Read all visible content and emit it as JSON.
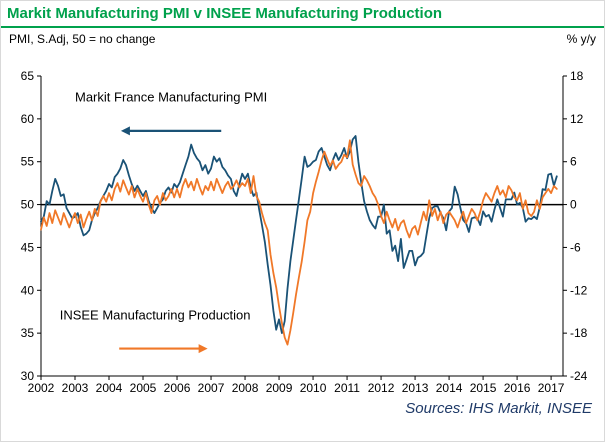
{
  "title": "Markit Manufacturing PMI v INSEE Manufacturing Production",
  "subtitle_left": "PMI, S.Adj, 50 = no change",
  "subtitle_right": "% y/y",
  "source": "Sources: IHS Markit, INSEE",
  "colors": {
    "title_green": "#00A14C",
    "pmi_blue": "#1A5276",
    "insee_orange": "#F07828",
    "source_navy": "#1F3A68",
    "annotation_text": "#1a1a1a",
    "axis_black": "#000000"
  },
  "chart_data": {
    "type": "line",
    "x_ticks": [
      2002,
      2003,
      2004,
      2005,
      2006,
      2007,
      2008,
      2009,
      2010,
      2011,
      2012,
      2013,
      2014,
      2015,
      2016,
      2017
    ],
    "x_domain": [
      2002,
      2017.35
    ],
    "left_axis": {
      "ticks": [
        65,
        60,
        55,
        50,
        45,
        40,
        35,
        30
      ],
      "min": 30,
      "max": 65
    },
    "right_axis": {
      "ticks": [
        18,
        12,
        6,
        0,
        -6,
        -12,
        -18,
        -24
      ],
      "min": -24,
      "max": 18
    },
    "baseline_left": 50,
    "series": [
      {
        "name": "Markit France Manufacturing PMI",
        "axis": "left",
        "color": "#1A5276",
        "start_year": 2002,
        "values": [
          48.0,
          48.6,
          50.4,
          50.0,
          51.6,
          53.0,
          52.2,
          51.0,
          51.2,
          49.6,
          49.0,
          48.4,
          48.6,
          49.0,
          47.4,
          46.4,
          46.6,
          47.0,
          48.2,
          49.0,
          49.6,
          50.4,
          51.0,
          51.6,
          52.4,
          52.0,
          53.2,
          53.6,
          54.2,
          55.2,
          54.6,
          53.4,
          52.4,
          51.6,
          52.2,
          51.6,
          51.0,
          51.6,
          50.4,
          49.6,
          49.0,
          49.6,
          50.2,
          50.6,
          51.6,
          52.0,
          51.4,
          52.4,
          52.0,
          52.6,
          53.6,
          54.6,
          55.6,
          57.0,
          56.0,
          55.4,
          55.0,
          54.0,
          54.6,
          53.6,
          54.2,
          55.6,
          55.0,
          55.4,
          54.4,
          54.0,
          53.4,
          53.0,
          51.6,
          51.0,
          52.4,
          53.6,
          53.0,
          53.6,
          52.0,
          51.0,
          51.4,
          49.4,
          47.6,
          45.6,
          43.0,
          40.6,
          37.6,
          35.4,
          36.6,
          35.0,
          36.4,
          40.2,
          43.4,
          45.8,
          48.2,
          50.6,
          53.0,
          55.6,
          54.4,
          54.6,
          55.0,
          55.2,
          56.2,
          56.6,
          55.6,
          54.6,
          54.0,
          55.2,
          56.0,
          55.2,
          55.8,
          56.6,
          55.4,
          56.2,
          57.6,
          58.0,
          55.0,
          52.6,
          50.4,
          49.2,
          48.2,
          47.6,
          47.2,
          48.6,
          48.6,
          50.0,
          46.6,
          47.0,
          44.6,
          45.2,
          43.4,
          46.0,
          42.6,
          43.6,
          44.6,
          44.6,
          42.9,
          43.8,
          44.0,
          44.4,
          46.4,
          48.4,
          49.6,
          49.8,
          49.8,
          49.0,
          48.4,
          47.0,
          49.2,
          49.6,
          52.1,
          51.2,
          49.6,
          48.2,
          47.8,
          46.8,
          48.4,
          48.5,
          48.4,
          47.6,
          49.2,
          48.6,
          48.8,
          48.0,
          49.4,
          50.6,
          49.6,
          48.6,
          50.6,
          50.6,
          50.6,
          51.4,
          50.0,
          50.2,
          49.6,
          48.0,
          48.4,
          48.3,
          48.6,
          48.3,
          49.7,
          51.8,
          51.7,
          53.5,
          53.6,
          52.2,
          53.3
        ]
      },
      {
        "name": "INSEE Manufacturing Production",
        "axis": "right",
        "color": "#F07828",
        "start_year": 2002,
        "values": [
          -3.5,
          -1.8,
          -3.0,
          -1.2,
          -2.6,
          -0.8,
          -1.8,
          -2.8,
          -1.2,
          -2.2,
          -3.2,
          -2.0,
          -1.2,
          -2.6,
          -1.4,
          -3.2,
          -2.0,
          -1.0,
          -2.2,
          -0.6,
          -1.6,
          0.4,
          1.2,
          0.4,
          1.6,
          0.6,
          2.2,
          3.0,
          1.8,
          3.4,
          2.4,
          1.4,
          2.6,
          1.0,
          2.2,
          1.2,
          0.4,
          1.6,
          0.0,
          -1.2,
          0.6,
          1.2,
          0.0,
          1.6,
          0.6,
          1.2,
          2.2,
          1.0,
          2.2,
          1.0,
          2.6,
          3.6,
          2.4,
          3.2,
          2.0,
          3.6,
          2.4,
          1.4,
          2.6,
          2.0,
          3.2,
          2.0,
          3.6,
          2.6,
          1.6,
          2.6,
          3.2,
          2.2,
          2.6,
          3.4,
          2.4,
          3.0,
          2.6,
          3.6,
          1.6,
          4.0,
          1.2,
          0.4,
          -1.2,
          -2.6,
          -3.6,
          -7.0,
          -9.6,
          -11.6,
          -14.2,
          -16.6,
          -18.6,
          -19.6,
          -17.6,
          -15.2,
          -12.6,
          -10.2,
          -8.0,
          -5.2,
          -2.2,
          -1.0,
          1.6,
          3.2,
          4.6,
          6.2,
          7.4,
          6.4,
          5.4,
          6.2,
          5.0,
          5.6,
          6.0,
          7.0,
          6.6,
          9.0,
          5.6,
          4.2,
          3.0,
          2.6,
          4.0,
          3.4,
          2.6,
          1.6,
          1.0,
          0.0,
          -1.6,
          -2.6,
          -1.0,
          -2.2,
          -3.2,
          -2.0,
          -3.6,
          -2.6,
          -2.2,
          -3.6,
          -4.6,
          -3.4,
          -3.0,
          -4.2,
          -2.6,
          -1.0,
          -2.2,
          0.6,
          -1.6,
          -0.6,
          -2.2,
          -1.0,
          -2.6,
          -1.4,
          -1.0,
          -1.6,
          -2.2,
          -3.2,
          -2.0,
          -1.0,
          -2.6,
          -1.6,
          -0.6,
          -1.2,
          -2.2,
          -1.0,
          0.6,
          1.6,
          1.0,
          0.4,
          1.6,
          2.6,
          1.4,
          2.0,
          1.0,
          2.6,
          2.0,
          1.0,
          0.6,
          1.6,
          -0.6,
          0.6,
          -1.2,
          -1.6,
          -1.0,
          0.6,
          -0.6,
          1.0,
          1.6,
          2.2,
          1.6,
          2.6,
          2.2
        ]
      }
    ],
    "annotations": [
      {
        "text": "Markit France Manufacturing PMI",
        "t": 2003.0,
        "v": 62.0,
        "arrow": {
          "t1": 2004.35,
          "t2": 2007.3,
          "v": 58.6,
          "dir": "left",
          "color": "#1A5276"
        }
      },
      {
        "text": "INSEE Manufacturing Production",
        "t": 2002.55,
        "v": 36.6,
        "arrow": {
          "t1": 2004.3,
          "t2": 2006.9,
          "v": 33.2,
          "dir": "right",
          "color": "#F07828"
        }
      }
    ]
  }
}
